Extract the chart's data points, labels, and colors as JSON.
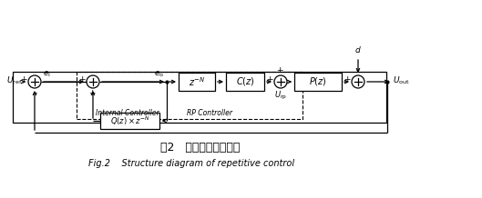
{
  "title_chinese": "图2   重复控制器结构图",
  "title_english": "Fig.2    Structure diagram of repetitive control",
  "background_color": "#ffffff",
  "line_color": "#000000",
  "figsize": [
    5.29,
    2.18
  ],
  "dpi": 100
}
